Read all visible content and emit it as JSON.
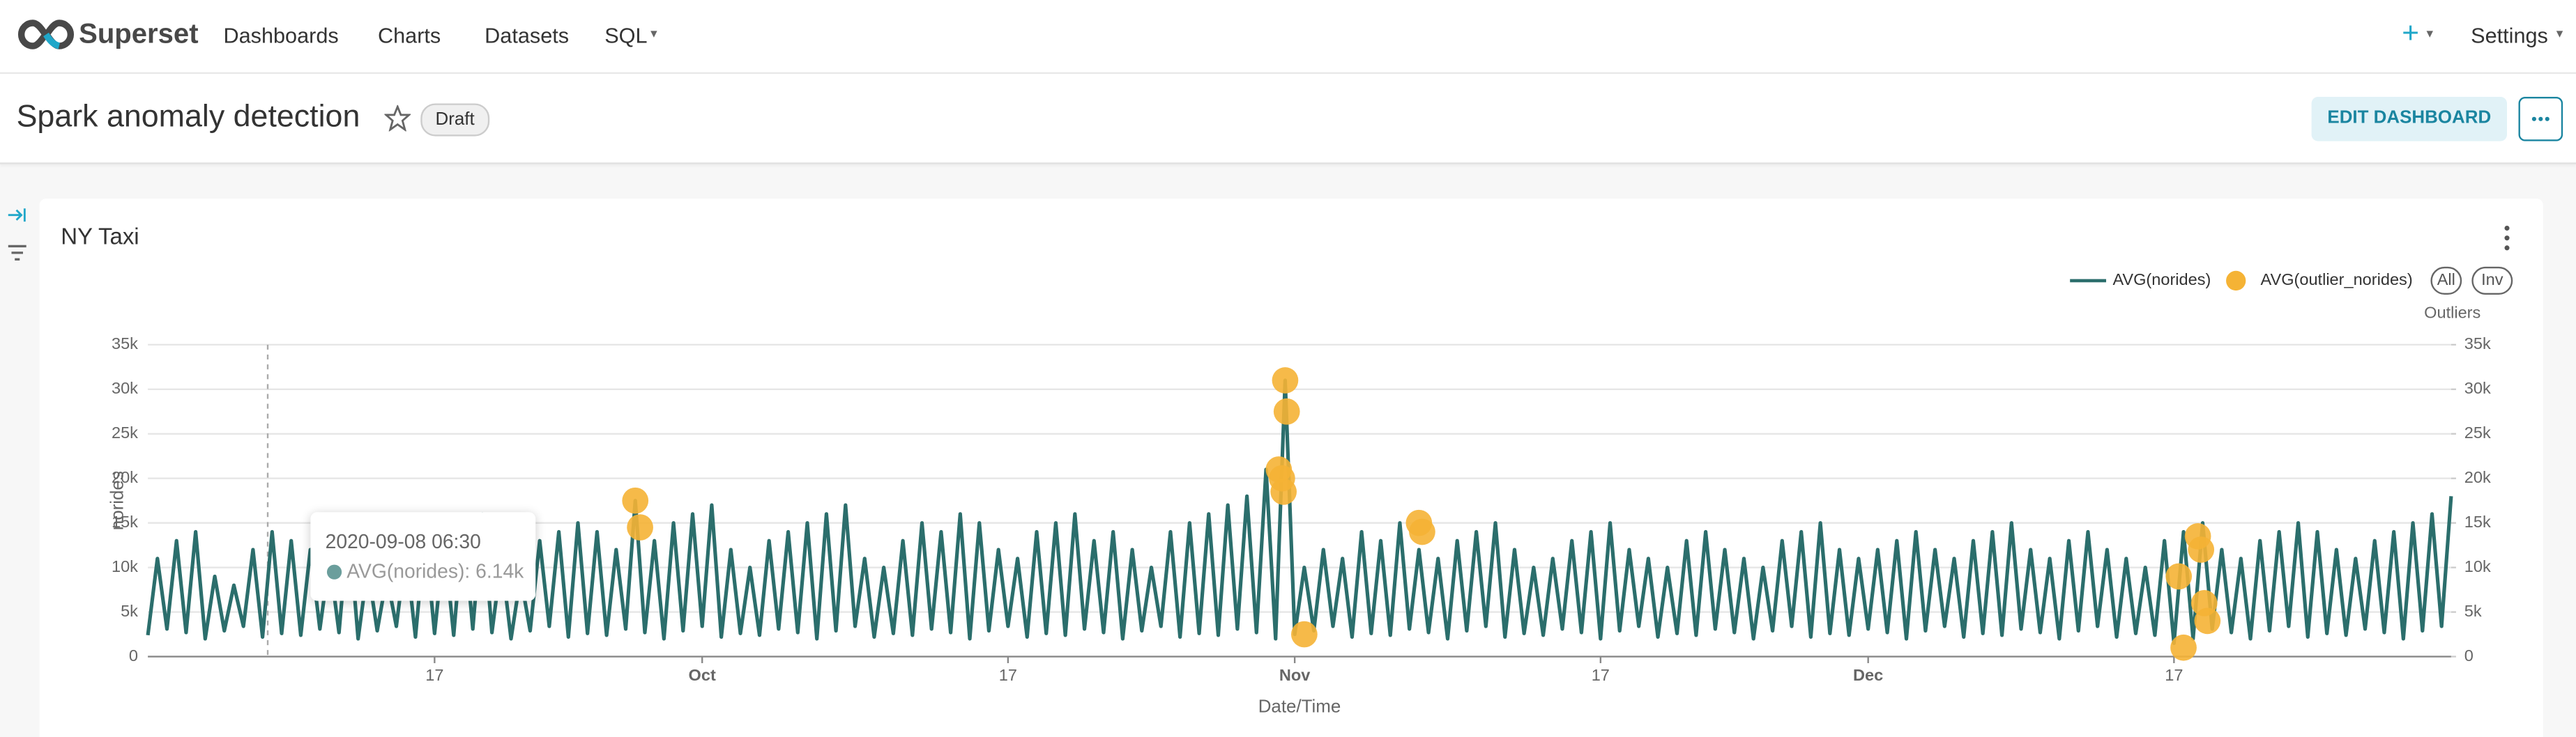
{
  "nav": {
    "brand": "Superset",
    "menu": [
      "Dashboards",
      "Charts",
      "Datasets",
      "SQL"
    ],
    "new": "+",
    "settings": "Settings"
  },
  "header": {
    "title": "Spark anomaly detection",
    "status": "Draft",
    "edit_button": "EDIT DASHBOARD"
  },
  "chart_data": {
    "type": "line",
    "title": "NY Taxi",
    "xlabel": "Date/Time",
    "ylabel": "norides",
    "y2label": "Outliers",
    "legend_buttons": [
      "All",
      "Inv"
    ],
    "tooltip": {
      "title": "2020-09-08 06:30",
      "text": "AVG(norides): 6.14k"
    },
    "xlim": [
      "2020-09-02 00:00",
      "2020-12-31 12:00"
    ],
    "xticks": [
      {
        "value": "2020-09-17",
        "label": "17"
      },
      {
        "value": "2020-10-01",
        "label": "Oct"
      },
      {
        "value": "2020-10-17",
        "label": "17"
      },
      {
        "value": "2020-11-01",
        "label": "Nov"
      },
      {
        "value": "2020-11-17",
        "label": "17"
      },
      {
        "value": "2020-12-01",
        "label": "Dec"
      },
      {
        "value": "2020-12-17",
        "label": "17"
      }
    ],
    "ylim": [
      0,
      35000
    ],
    "yticks": [
      0,
      {
        "value": 5000,
        "label": "5k"
      },
      {
        "value": 10000,
        "label": "10k"
      },
      {
        "value": 15000,
        "label": "15k"
      },
      {
        "value": 20000,
        "label": "20k"
      },
      {
        "value": 25000,
        "label": "25k"
      },
      {
        "value": 30000,
        "label": "30k"
      },
      {
        "value": 35000,
        "label": "35k"
      }
    ],
    "y2lim": [
      0,
      35000
    ],
    "y2ticks": [
      0,
      {
        "value": 5000,
        "label": "5k"
      },
      {
        "value": 10000,
        "label": "10k"
      },
      {
        "value": 15000,
        "label": "15k"
      },
      {
        "value": 20000,
        "label": "20k"
      },
      {
        "value": 25000,
        "label": "25k"
      },
      {
        "value": 30000,
        "label": "30k"
      },
      {
        "value": 35000,
        "label": "35k"
      }
    ],
    "grid": true,
    "series": [
      {
        "name": "AVG(norides)",
        "color": "#2b6e6c",
        "type": "line",
        "x": [
          "2020-09-02 00:00",
          "2020-09-02 12:00",
          "2020-09-03 00:00",
          "2020-09-03 12:00",
          "2020-09-04 00:00",
          "2020-09-04 12:00",
          "2020-09-05 00:00",
          "2020-09-05 12:00",
          "2020-09-06 00:00",
          "2020-09-06 12:00",
          "2020-09-07 00:00",
          "2020-09-07 12:00",
          "2020-09-08 00:00",
          "2020-09-08 12:00",
          "2020-09-09 00:00",
          "2020-09-09 12:00",
          "2020-09-10 00:00",
          "2020-09-10 12:00",
          "2020-09-11 00:00",
          "2020-09-11 12:00",
          "2020-09-12 00:00",
          "2020-09-12 12:00",
          "2020-09-13 00:00",
          "2020-09-13 12:00",
          "2020-09-14 00:00",
          "2020-09-14 12:00",
          "2020-09-15 00:00",
          "2020-09-15 12:00",
          "2020-09-16 00:00",
          "2020-09-16 12:00",
          "2020-09-17 00:00",
          "2020-09-17 12:00",
          "2020-09-18 00:00",
          "2020-09-18 12:00",
          "2020-09-19 00:00",
          "2020-09-19 12:00",
          "2020-09-20 00:00",
          "2020-09-20 12:00",
          "2020-09-21 00:00",
          "2020-09-21 12:00",
          "2020-09-22 00:00",
          "2020-09-22 12:00",
          "2020-09-23 00:00",
          "2020-09-23 12:00",
          "2020-09-24 00:00",
          "2020-09-24 12:00",
          "2020-09-25 00:00",
          "2020-09-25 12:00",
          "2020-09-26 00:00",
          "2020-09-26 12:00",
          "2020-09-27 00:00",
          "2020-09-27 12:00",
          "2020-09-28 00:00",
          "2020-09-28 12:00",
          "2020-09-29 00:00",
          "2020-09-29 12:00",
          "2020-09-30 00:00",
          "2020-09-30 12:00",
          "2020-10-01 00:00",
          "2020-10-01 12:00",
          "2020-10-02 00:00",
          "2020-10-02 12:00",
          "2020-10-03 00:00",
          "2020-10-03 12:00",
          "2020-10-04 00:00",
          "2020-10-04 12:00",
          "2020-10-05 00:00",
          "2020-10-05 12:00",
          "2020-10-06 00:00",
          "2020-10-06 12:00",
          "2020-10-07 00:00",
          "2020-10-07 12:00",
          "2020-10-08 00:00",
          "2020-10-08 12:00",
          "2020-10-09 00:00",
          "2020-10-09 12:00",
          "2020-10-10 00:00",
          "2020-10-10 12:00",
          "2020-10-11 00:00",
          "2020-10-11 12:00",
          "2020-10-12 00:00",
          "2020-10-12 12:00",
          "2020-10-13 00:00",
          "2020-10-13 12:00",
          "2020-10-14 00:00",
          "2020-10-14 12:00",
          "2020-10-15 00:00",
          "2020-10-15 12:00",
          "2020-10-16 00:00",
          "2020-10-16 12:00",
          "2020-10-17 00:00",
          "2020-10-17 12:00",
          "2020-10-18 00:00",
          "2020-10-18 12:00",
          "2020-10-19 00:00",
          "2020-10-19 12:00",
          "2020-10-20 00:00",
          "2020-10-20 12:00",
          "2020-10-21 00:00",
          "2020-10-21 12:00",
          "2020-10-22 00:00",
          "2020-10-22 12:00",
          "2020-10-23 00:00",
          "2020-10-23 12:00",
          "2020-10-24 00:00",
          "2020-10-24 12:00",
          "2020-10-25 00:00",
          "2020-10-25 12:00",
          "2020-10-26 00:00",
          "2020-10-26 12:00",
          "2020-10-27 00:00",
          "2020-10-27 12:00",
          "2020-10-28 00:00",
          "2020-10-28 12:00",
          "2020-10-29 00:00",
          "2020-10-29 12:00",
          "2020-10-30 00:00",
          "2020-10-30 12:00",
          "2020-10-31 00:00",
          "2020-10-31 12:00",
          "2020-11-01 00:00",
          "2020-11-01 12:00",
          "2020-11-02 00:00",
          "2020-11-02 12:00",
          "2020-11-03 00:00",
          "2020-11-03 12:00",
          "2020-11-04 00:00",
          "2020-11-04 12:00",
          "2020-11-05 00:00",
          "2020-11-05 12:00",
          "2020-11-06 00:00",
          "2020-11-06 12:00",
          "2020-11-07 00:00",
          "2020-11-07 12:00",
          "2020-11-08 00:00",
          "2020-11-08 12:00",
          "2020-11-09 00:00",
          "2020-11-09 12:00",
          "2020-11-10 00:00",
          "2020-11-10 12:00",
          "2020-11-11 00:00",
          "2020-11-11 12:00",
          "2020-11-12 00:00",
          "2020-11-12 12:00",
          "2020-11-13 00:00",
          "2020-11-13 12:00",
          "2020-11-14 00:00",
          "2020-11-14 12:00",
          "2020-11-15 00:00",
          "2020-11-15 12:00",
          "2020-11-16 00:00",
          "2020-11-16 12:00",
          "2020-11-17 00:00",
          "2020-11-17 12:00",
          "2020-11-18 00:00",
          "2020-11-18 12:00",
          "2020-11-19 00:00",
          "2020-11-19 12:00",
          "2020-11-20 00:00",
          "2020-11-20 12:00",
          "2020-11-21 00:00",
          "2020-11-21 12:00",
          "2020-11-22 00:00",
          "2020-11-22 12:00",
          "2020-11-23 00:00",
          "2020-11-23 12:00",
          "2020-11-24 00:00",
          "2020-11-24 12:00",
          "2020-11-25 00:00",
          "2020-11-25 12:00",
          "2020-11-26 00:00",
          "2020-11-26 12:00",
          "2020-11-27 00:00",
          "2020-11-27 12:00",
          "2020-11-28 00:00",
          "2020-11-28 12:00",
          "2020-11-29 00:00",
          "2020-11-29 12:00",
          "2020-11-30 00:00",
          "2020-11-30 12:00",
          "2020-12-01 00:00",
          "2020-12-01 12:00",
          "2020-12-02 00:00",
          "2020-12-02 12:00",
          "2020-12-03 00:00",
          "2020-12-03 12:00",
          "2020-12-04 00:00",
          "2020-12-04 12:00",
          "2020-12-05 00:00",
          "2020-12-05 12:00",
          "2020-12-06 00:00",
          "2020-12-06 12:00",
          "2020-12-07 00:00",
          "2020-12-07 12:00",
          "2020-12-08 00:00",
          "2020-12-08 12:00",
          "2020-12-09 00:00",
          "2020-12-09 12:00",
          "2020-12-10 00:00",
          "2020-12-10 12:00",
          "2020-12-11 00:00",
          "2020-12-11 12:00",
          "2020-12-12 00:00",
          "2020-12-12 12:00",
          "2020-12-13 00:00",
          "2020-12-13 12:00",
          "2020-12-14 00:00",
          "2020-12-14 12:00",
          "2020-12-15 00:00",
          "2020-12-15 12:00",
          "2020-12-16 00:00",
          "2020-12-16 12:00",
          "2020-12-17 00:00",
          "2020-12-17 12:00",
          "2020-12-18 00:00",
          "2020-12-18 12:00",
          "2020-12-19 00:00",
          "2020-12-19 12:00",
          "2020-12-20 00:00",
          "2020-12-20 12:00",
          "2020-12-21 00:00",
          "2020-12-21 12:00",
          "2020-12-22 00:00",
          "2020-12-22 12:00",
          "2020-12-23 00:00",
          "2020-12-23 12:00",
          "2020-12-24 00:00",
          "2020-12-24 12:00",
          "2020-12-25 00:00",
          "2020-12-25 12:00",
          "2020-12-26 00:00",
          "2020-12-26 12:00",
          "2020-12-27 00:00",
          "2020-12-27 12:00",
          "2020-12-28 00:00",
          "2020-12-28 12:00",
          "2020-12-29 00:00",
          "2020-12-29 12:00",
          "2020-12-30 00:00",
          "2020-12-30 12:00",
          "2020-12-31 00:00",
          "2020-12-31 12:00"
        ],
        "values": [
          2400,
          11000,
          3100,
          13000,
          2700,
          14000,
          2000,
          9000,
          2900,
          8000,
          3400,
          12000,
          2200,
          14000,
          2600,
          13000,
          2400,
          12000,
          3100,
          11000,
          2700,
          15000,
          2000,
          10000,
          2900,
          9000,
          3400,
          12000,
          2200,
          14000,
          2600,
          13000,
          2400,
          15000,
          3100,
          16000,
          2700,
          11000,
          2000,
          9000,
          2900,
          13000,
          3400,
          14000,
          2200,
          15000,
          2600,
          14000,
          2400,
          12000,
          3100,
          17500,
          2700,
          13000,
          2000,
          15000,
          2900,
          16000,
          3400,
          17000,
          2200,
          12000,
          2600,
          10000,
          2400,
          13000,
          3100,
          14000,
          2700,
          15000,
          2000,
          16000,
          2900,
          17000,
          3400,
          11000,
          2200,
          10000,
          2600,
          13000,
          2400,
          15000,
          3100,
          14000,
          2700,
          16000,
          2000,
          15000,
          2900,
          12000,
          3400,
          11000,
          2200,
          14000,
          2600,
          15000,
          2400,
          16000,
          3100,
          13000,
          2700,
          14000,
          2000,
          12000,
          2900,
          10000,
          3400,
          14000,
          2200,
          15000,
          2600,
          16000,
          2400,
          17000,
          3100,
          18000,
          2700,
          21000,
          2000,
          31000,
          2500,
          10000,
          2900,
          12000,
          3400,
          11000,
          2200,
          14000,
          2600,
          13000,
          2400,
          15000,
          3100,
          12000,
          2700,
          11000,
          2000,
          13000,
          2900,
          14000,
          3400,
          15000,
          2200,
          12000,
          2600,
          10000,
          2400,
          11000,
          3100,
          13000,
          2700,
          14000,
          2000,
          15000,
          2900,
          12000,
          3400,
          11000,
          2200,
          10000,
          2600,
          13000,
          2400,
          14000,
          3100,
          12000,
          2700,
          11000,
          2000,
          10000,
          2900,
          13000,
          3400,
          14000,
          2200,
          15000,
          2600,
          12000,
          2400,
          11000,
          3100,
          12000,
          2700,
          13000,
          2000,
          14000,
          2900,
          12000,
          3400,
          11000,
          2200,
          13000,
          2600,
          14000,
          2400,
          15000,
          3100,
          12000,
          2700,
          11000,
          2000,
          13000,
          2900,
          14000,
          3400,
          12000,
          2200,
          11000,
          2600,
          10000,
          2400,
          13000,
          1500,
          14000,
          2000,
          15000,
          3100,
          12000,
          2700,
          11000,
          2000,
          13000,
          2900,
          14000,
          3400,
          15000,
          2200,
          14000,
          2600,
          12000,
          2400,
          11000,
          3100,
          13000,
          2700,
          14000,
          2000,
          15000,
          2900,
          16000,
          3400,
          18000
        ]
      },
      {
        "name": "AVG(outlier_norides)",
        "color": "#f5b335",
        "type": "scatter",
        "axis": "y2",
        "x": [
          "2020-09-27 12:00",
          "2020-09-27 18:00",
          "2020-10-31 04:00",
          "2020-10-31 08:00",
          "2020-10-31 10:00",
          "2020-10-31 12:00",
          "2020-10-31 14:00",
          "2020-11-01 12:00",
          "2020-11-07 12:00",
          "2020-11-07 16:00",
          "2020-12-17 06:00",
          "2020-12-17 12:00",
          "2020-12-18 06:00",
          "2020-12-18 10:00",
          "2020-12-18 14:00",
          "2020-12-18 18:00"
        ],
        "values": [
          17500,
          14500,
          21000,
          20000,
          18500,
          31000,
          27500,
          2500,
          15000,
          14000,
          9000,
          1000,
          13500,
          12000,
          6000,
          4000
        ]
      }
    ]
  }
}
